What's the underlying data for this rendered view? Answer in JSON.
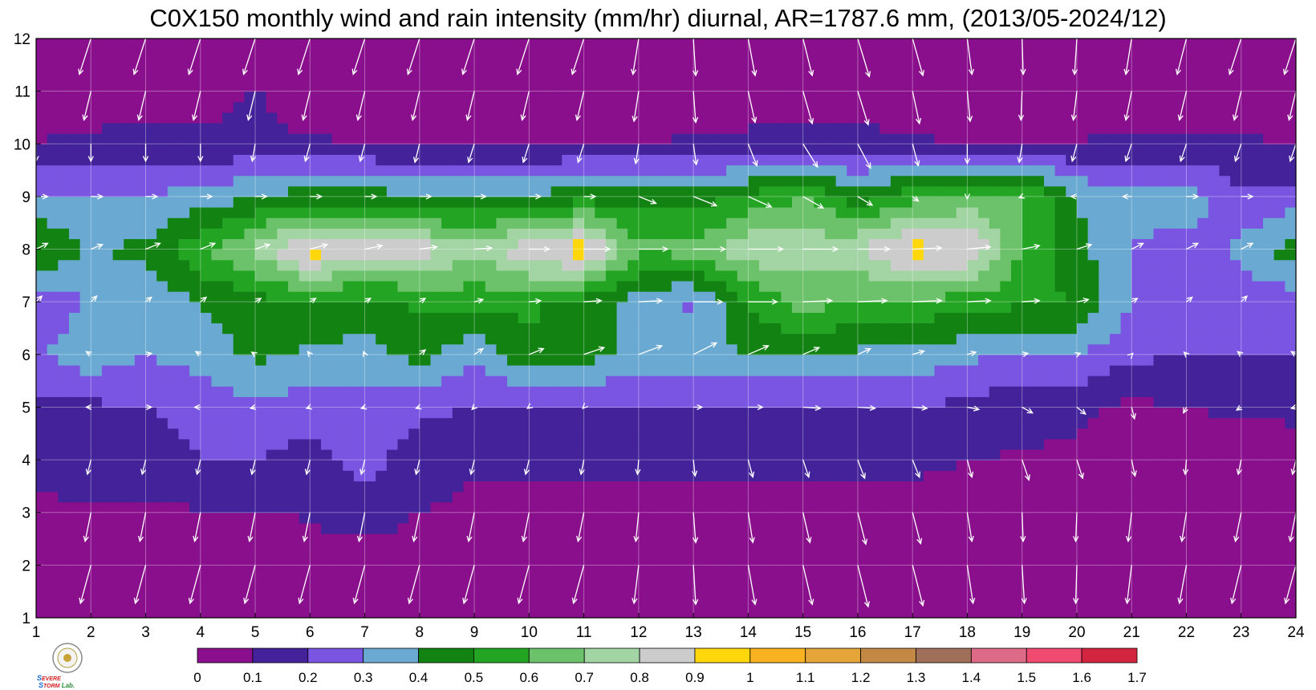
{
  "chart_data": {
    "type": "heatmap",
    "title": "C0X150 monthly wind and rain intensity (mm/hr) diurnal, AR=1787.6 mm, (2013/05-2024/12)",
    "xlabel": "",
    "ylabel": "",
    "xlim": [
      1,
      24
    ],
    "ylim": [
      1,
      12
    ],
    "x_ticks": [
      "1",
      "2",
      "3",
      "4",
      "5",
      "6",
      "7",
      "8",
      "9",
      "10",
      "11",
      "12",
      "13",
      "14",
      "15",
      "16",
      "17",
      "18",
      "19",
      "20",
      "21",
      "22",
      "23",
      "24"
    ],
    "y_ticks": [
      "1",
      "2",
      "3",
      "4",
      "5",
      "6",
      "7",
      "8",
      "9",
      "10",
      "11",
      "12"
    ],
    "grid": true,
    "legend": "colorbar-bottom",
    "levels": [
      0,
      0.1,
      0.2,
      0.3,
      0.4,
      0.5,
      0.6,
      0.7,
      0.8,
      0.9,
      1,
      1.1,
      1.2,
      1.3,
      1.4,
      1.5,
      1.6,
      1.7
    ],
    "level_labels": [
      "0",
      "0.1",
      "0.2",
      "0.3",
      "0.4",
      "0.5",
      "0.6",
      "0.7",
      "0.8",
      "0.9",
      "1",
      "1.1",
      "1.2",
      "1.3",
      "1.4",
      "1.5",
      "1.6",
      "1.7"
    ],
    "colors": [
      "#8a0f8c",
      "#43229a",
      "#7a55e2",
      "#6aa9d2",
      "#128212",
      "#23a523",
      "#6cc26a",
      "#a2d4a4",
      "#cccccc",
      "#ffd70a",
      "#f9b320",
      "#e6a538",
      "#c38843",
      "#9f6f5a",
      "#dd6a86",
      "#f04a70",
      "#d42540"
    ],
    "values": [
      [
        0.05,
        0.05,
        0.05,
        0.05,
        0.05,
        0.05,
        0.05,
        0.05,
        0.05,
        0.05,
        0.05,
        0.05,
        0.05,
        0.05,
        0.05,
        0.05,
        0.05,
        0.05,
        0.05,
        0.05,
        0.05,
        0.05,
        0.05,
        0.05
      ],
      [
        0.05,
        0.05,
        0.05,
        0.05,
        0.05,
        0.05,
        0.05,
        0.05,
        0.05,
        0.05,
        0.05,
        0.05,
        0.05,
        0.05,
        0.05,
        0.05,
        0.05,
        0.05,
        0.05,
        0.05,
        0.05,
        0.05,
        0.05,
        0.05
      ],
      [
        0.08,
        0.09,
        0.09,
        0.09,
        0.09,
        0.11,
        0.15,
        0.1,
        0.08,
        0.08,
        0.08,
        0.08,
        0.08,
        0.08,
        0.08,
        0.08,
        0.08,
        0.08,
        0.08,
        0.08,
        0.08,
        0.08,
        0.08,
        0.08
      ],
      [
        0.12,
        0.15,
        0.15,
        0.2,
        0.2,
        0.16,
        0.24,
        0.14,
        0.11,
        0.12,
        0.11,
        0.11,
        0.11,
        0.11,
        0.11,
        0.11,
        0.11,
        0.1,
        0.09,
        0.08,
        0.07,
        0.06,
        0.06,
        0.06
      ],
      [
        0.18,
        0.18,
        0.2,
        0.24,
        0.28,
        0.25,
        0.27,
        0.22,
        0.2,
        0.2,
        0.18,
        0.18,
        0.2,
        0.18,
        0.18,
        0.19,
        0.2,
        0.17,
        0.14,
        0.12,
        0.08,
        0.1,
        0.11,
        0.12
      ],
      [
        0.28,
        0.36,
        0.3,
        0.34,
        0.42,
        0.38,
        0.36,
        0.44,
        0.31,
        0.48,
        0.44,
        0.38,
        0.34,
        0.42,
        0.4,
        0.38,
        0.36,
        0.32,
        0.28,
        0.3,
        0.22,
        0.2,
        0.2,
        0.21
      ],
      [
        0.25,
        0.3,
        0.32,
        0.4,
        0.46,
        0.5,
        0.46,
        0.52,
        0.54,
        0.52,
        0.46,
        0.34,
        0.28,
        0.5,
        0.65,
        0.58,
        0.58,
        0.55,
        0.52,
        0.5,
        0.3,
        0.26,
        0.24,
        0.25
      ],
      [
        0.5,
        0.4,
        0.42,
        0.58,
        0.72,
        0.96,
        0.85,
        0.86,
        0.72,
        0.88,
        0.97,
        0.62,
        0.64,
        0.78,
        0.75,
        0.8,
        0.94,
        0.92,
        0.6,
        0.42,
        0.3,
        0.26,
        0.32,
        0.46
      ],
      [
        0.32,
        0.3,
        0.3,
        0.34,
        0.4,
        0.45,
        0.44,
        0.42,
        0.4,
        0.42,
        0.46,
        0.45,
        0.44,
        0.52,
        0.6,
        0.45,
        0.56,
        0.62,
        0.62,
        0.4,
        0.32,
        0.36,
        0.22,
        0.24
      ],
      [
        0.1,
        0.12,
        0.13,
        0.13,
        0.12,
        0.11,
        0.1,
        0.09,
        0.08,
        0.09,
        0.1,
        0.1,
        0.11,
        0.12,
        0.14,
        0.13,
        0.11,
        0.1,
        0.1,
        0.1,
        0.12,
        0.12,
        0.11,
        0.1
      ],
      [
        0.05,
        0.05,
        0.05,
        0.05,
        0.11,
        0.05,
        0.05,
        0.05,
        0.05,
        0.05,
        0.05,
        0.05,
        0.05,
        0.05,
        0.05,
        0.05,
        0.05,
        0.05,
        0.05,
        0.05,
        0.05,
        0.05,
        0.05,
        0.05
      ],
      [
        0.05,
        0.05,
        0.05,
        0.05,
        0.05,
        0.05,
        0.05,
        0.05,
        0.05,
        0.05,
        0.05,
        0.05,
        0.05,
        0.05,
        0.05,
        0.05,
        0.05,
        0.05,
        0.05,
        0.05,
        0.05,
        0.05,
        0.05,
        0.05
      ]
    ],
    "wind_u": [
      [
        -0.22,
        -0.22,
        -0.22,
        -0.22,
        -0.22,
        -0.22,
        -0.22,
        -0.22,
        -0.22,
        -0.22,
        -0.22,
        -0.1,
        0.04,
        0.12,
        0.16,
        0.2,
        0.2,
        0.12,
        0.04,
        -0.04,
        -0.12,
        -0.16,
        -0.2,
        -0.22
      ],
      [
        -0.18,
        -0.18,
        -0.18,
        -0.18,
        -0.18,
        -0.18,
        -0.18,
        -0.18,
        -0.18,
        -0.18,
        -0.18,
        -0.08,
        0.04,
        0.12,
        0.16,
        0.18,
        0.18,
        0.1,
        0.04,
        -0.02,
        -0.08,
        -0.12,
        -0.16,
        -0.18
      ],
      [
        -0.1,
        -0.1,
        -0.1,
        -0.1,
        -0.1,
        -0.1,
        -0.1,
        -0.1,
        -0.1,
        -0.1,
        -0.1,
        -0.05,
        0.04,
        0.08,
        0.12,
        0.14,
        0.14,
        0.08,
        0.02,
        -0.02,
        -0.06,
        -0.08,
        -0.1,
        -0.1
      ],
      [
        -0.06,
        -0.06,
        -0.06,
        -0.06,
        -0.06,
        -0.06,
        -0.06,
        -0.06,
        -0.06,
        -0.06,
        -0.05,
        -0.02,
        0.03,
        0.08,
        0.1,
        0.12,
        0.12,
        0.08,
        0.12,
        0.1,
        0.06,
        -0.02,
        -0.05,
        -0.06
      ],
      [
        -0.08,
        -0.08,
        0.1,
        -0.1,
        -0.08,
        -0.06,
        -0.06,
        -0.06,
        -0.04,
        -0.03,
        -0.02,
        0,
        0.15,
        0.25,
        0.3,
        0.3,
        0.25,
        0.2,
        0.18,
        0.15,
        0.05,
        -0.05,
        -0.08,
        -0.08
      ],
      [
        -0.08,
        -0.08,
        0.1,
        -0.08,
        -0.06,
        -0.04,
        -0.02,
        0.1,
        0.15,
        0.25,
        0.35,
        0.4,
        0.4,
        0.35,
        0.28,
        0.22,
        0.2,
        0.15,
        0.1,
        0.06,
        0.02,
        -0.04,
        -0.06,
        -0.08
      ],
      [
        0.1,
        0.1,
        0.1,
        0.1,
        0.1,
        0.1,
        0.1,
        0.1,
        0.15,
        0.2,
        0.3,
        0.4,
        0.5,
        0.5,
        0.5,
        0.5,
        0.5,
        0.4,
        0.3,
        0.2,
        0.1,
        0.1,
        0.1,
        0.1
      ],
      [
        0.2,
        0.2,
        0.25,
        0.25,
        0.25,
        0.3,
        0.3,
        0.3,
        0.3,
        0.35,
        0.45,
        0.5,
        0.55,
        0.6,
        0.6,
        0.55,
        0.5,
        0.4,
        0.3,
        0.25,
        0.2,
        0.2,
        0.2,
        0.2
      ],
      [
        0.2,
        0.2,
        0.2,
        0.2,
        0.2,
        0.2,
        0.2,
        0.2,
        0.2,
        0.2,
        0.2,
        0.3,
        0.4,
        0.4,
        0.35,
        0.25,
        0.1,
        0,
        -0.05,
        -0.1,
        -0.15,
        0.2,
        0.2,
        0.2
      ],
      [
        0,
        0,
        0,
        0,
        -0.05,
        -0.08,
        -0.08,
        -0.08,
        -0.1,
        -0.1,
        -0.1,
        -0.05,
        0.05,
        0.15,
        0.25,
        0.22,
        0.1,
        0,
        -0.05,
        -0.08,
        -0.1,
        -0.1,
        -0.1,
        -0.1
      ],
      [
        -0.12,
        -0.12,
        -0.12,
        -0.12,
        -0.12,
        -0.12,
        -0.12,
        -0.12,
        -0.12,
        -0.12,
        -0.12,
        -0.08,
        0.04,
        0.12,
        0.16,
        0.18,
        0.12,
        0.05,
        -0.02,
        -0.06,
        -0.1,
        -0.12,
        -0.12,
        -0.12
      ],
      [
        -0.2,
        -0.2,
        -0.2,
        -0.2,
        -0.2,
        -0.2,
        -0.2,
        -0.2,
        -0.2,
        -0.2,
        -0.2,
        -0.1,
        0.04,
        0.12,
        0.16,
        0.2,
        0.18,
        0.08,
        0.02,
        -0.04,
        -0.1,
        -0.16,
        -0.2,
        -0.2
      ]
    ],
    "wind_v": [
      [
        -0.72,
        -0.72,
        -0.72,
        -0.72,
        -0.72,
        -0.72,
        -0.72,
        -0.72,
        -0.72,
        -0.72,
        -0.72,
        -0.72,
        -0.74,
        -0.74,
        -0.74,
        -0.78,
        -0.76,
        -0.72,
        -0.72,
        -0.72,
        -0.72,
        -0.72,
        -0.72,
        -0.72
      ],
      [
        -0.66,
        -0.66,
        -0.66,
        -0.66,
        -0.66,
        -0.66,
        -0.66,
        -0.66,
        -0.66,
        -0.66,
        -0.66,
        -0.66,
        -0.68,
        -0.68,
        -0.68,
        -0.72,
        -0.7,
        -0.66,
        -0.66,
        -0.66,
        -0.66,
        -0.66,
        -0.66,
        -0.66
      ],
      [
        -0.5,
        -0.5,
        -0.5,
        -0.5,
        -0.5,
        -0.5,
        -0.5,
        -0.5,
        -0.5,
        -0.5,
        -0.5,
        -0.5,
        -0.52,
        -0.52,
        -0.52,
        -0.55,
        -0.54,
        -0.5,
        -0.5,
        -0.5,
        -0.5,
        -0.5,
        -0.5,
        -0.5
      ],
      [
        -0.25,
        -0.25,
        -0.25,
        -0.25,
        -0.25,
        -0.25,
        -0.25,
        -0.25,
        -0.25,
        -0.25,
        -0.25,
        -0.25,
        -0.28,
        -0.3,
        -0.3,
        -0.32,
        -0.3,
        -0.3,
        -0.35,
        -0.32,
        -0.28,
        -0.25,
        -0.25,
        -0.25
      ],
      [
        0,
        0,
        0,
        0,
        -0.02,
        -0.02,
        -0.02,
        -0.02,
        -0.04,
        -0.02,
        -0.02,
        0,
        0,
        0,
        -0.02,
        -0.02,
        -0.02,
        -0.04,
        -0.1,
        -0.12,
        -0.2,
        -0.1,
        -0.05,
        -0.02
      ],
      [
        0.05,
        0.05,
        0.02,
        0.05,
        0.04,
        0.05,
        0.05,
        0.08,
        0.1,
        0.1,
        0.12,
        0.15,
        0.2,
        0.15,
        0.12,
        0.1,
        0.06,
        0.04,
        0.02,
        0.02,
        0.02,
        0.04,
        0.05,
        0.05
      ],
      [
        0.1,
        0.1,
        0.08,
        0.08,
        0.06,
        0.06,
        0.06,
        0.06,
        0.04,
        0.02,
        0.02,
        0.02,
        0,
        0,
        0.02,
        0.02,
        0.02,
        0.02,
        0.02,
        0.04,
        0.06,
        0.08,
        0.1,
        0.1
      ],
      [
        0.1,
        0.08,
        0.1,
        0.1,
        0.08,
        0.08,
        0.06,
        0.04,
        0.02,
        0,
        0,
        0,
        0,
        0,
        0,
        0,
        0.02,
        0.04,
        0.06,
        0.08,
        0.1,
        0.1,
        0.1,
        0.1
      ],
      [
        0,
        0,
        0,
        0,
        0,
        0,
        0,
        0,
        0,
        0,
        0,
        -0.12,
        -0.16,
        -0.18,
        -0.2,
        -0.15,
        -0.08,
        -0.04,
        -0.02,
        0,
        0,
        0,
        0,
        0
      ],
      [
        -0.3,
        -0.3,
        -0.3,
        -0.3,
        -0.3,
        -0.3,
        -0.3,
        -0.32,
        -0.32,
        -0.32,
        -0.32,
        -0.34,
        -0.36,
        -0.38,
        -0.4,
        -0.42,
        -0.38,
        -0.34,
        -0.32,
        -0.3,
        -0.3,
        -0.3,
        -0.3,
        -0.3
      ],
      [
        -0.5,
        -0.5,
        -0.5,
        -0.5,
        -0.5,
        -0.5,
        -0.5,
        -0.5,
        -0.5,
        -0.5,
        -0.5,
        -0.52,
        -0.54,
        -0.54,
        -0.56,
        -0.58,
        -0.56,
        -0.52,
        -0.5,
        -0.5,
        -0.5,
        -0.5,
        -0.5,
        -0.5
      ],
      [
        -0.62,
        -0.62,
        -0.62,
        -0.62,
        -0.62,
        -0.62,
        -0.62,
        -0.62,
        -0.62,
        -0.62,
        -0.62,
        -0.62,
        -0.64,
        -0.64,
        -0.64,
        -0.66,
        -0.64,
        -0.62,
        -0.62,
        -0.62,
        -0.62,
        -0.62,
        -0.62,
        -0.62
      ]
    ]
  },
  "logo": {
    "text": "Severe Storm Lab.",
    "colors": {
      "primary": "#1a6dd6",
      "accent": "#d62020",
      "text": "#2a8a3a"
    }
  }
}
